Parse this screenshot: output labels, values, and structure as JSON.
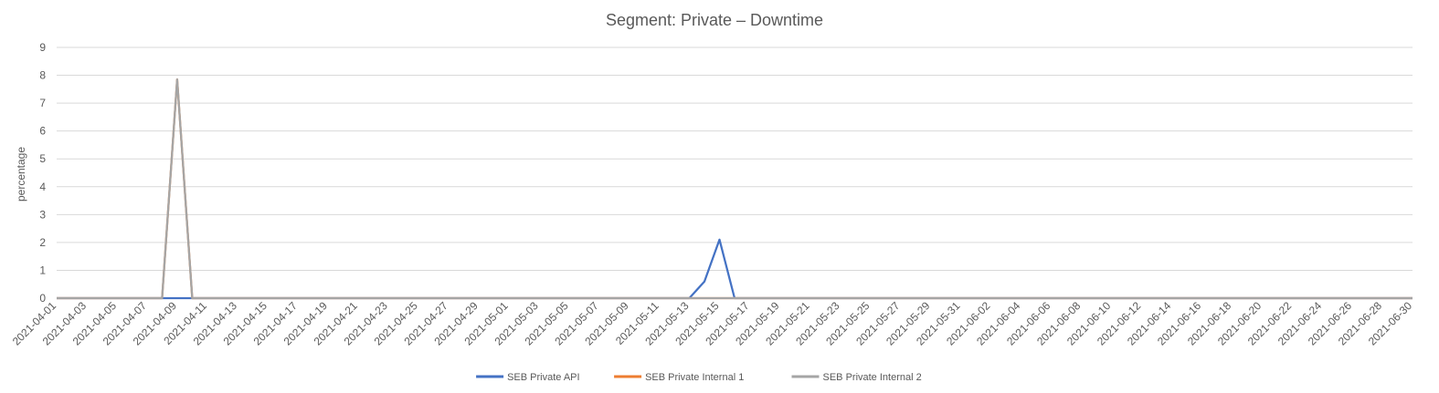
{
  "chart_data": {
    "type": "line",
    "title": "Segment: Private – Downtime",
    "ylabel": "percentage",
    "xlabel": "",
    "ylim": [
      0,
      9
    ],
    "yticks": [
      0,
      1,
      2,
      3,
      4,
      5,
      6,
      7,
      8,
      9
    ],
    "grid": true,
    "legend_position": "bottom",
    "x_start": "2021-04-01",
    "x_end": "2021-06-30",
    "x_tick_labels": [
      "2021-04-01",
      "2021-04-03",
      "2021-04-05",
      "2021-04-07",
      "2021-04-09",
      "2021-04-11",
      "2021-04-13",
      "2021-04-15",
      "2021-04-17",
      "2021-04-19",
      "2021-04-21",
      "2021-04-23",
      "2021-04-25",
      "2021-04-27",
      "2021-04-29",
      "2021-05-01",
      "2021-05-03",
      "2021-05-05",
      "2021-05-07",
      "2021-05-09",
      "2021-05-11",
      "2021-05-13",
      "2021-05-15",
      "2021-05-17",
      "2021-05-19",
      "2021-05-21",
      "2021-05-23",
      "2021-05-25",
      "2021-05-27",
      "2021-05-29",
      "2021-05-31",
      "2021-06-02",
      "2021-06-04",
      "2021-06-06",
      "2021-06-08",
      "2021-06-10",
      "2021-06-12",
      "2021-06-14",
      "2021-06-16",
      "2021-06-18",
      "2021-06-20",
      "2021-06-22",
      "2021-06-24",
      "2021-06-26",
      "2021-06-28",
      "2021-06-30"
    ],
    "series": [
      {
        "name": "SEB Private API",
        "color": "#4472c4",
        "points": [
          {
            "x": "2021-04-01",
            "y": 0
          },
          {
            "x": "2021-05-13",
            "y": 0
          },
          {
            "x": "2021-05-14",
            "y": 0.6
          },
          {
            "x": "2021-05-15",
            "y": 2.1
          },
          {
            "x": "2021-05-16",
            "y": 0
          },
          {
            "x": "2021-06-30",
            "y": 0
          }
        ]
      },
      {
        "name": "SEB Private Internal 1",
        "color": "#ed7d31",
        "points": [
          {
            "x": "2021-04-01",
            "y": 0
          },
          {
            "x": "2021-04-08",
            "y": 0
          },
          {
            "x": "2021-04-09",
            "y": 7.85
          },
          {
            "x": "2021-04-10",
            "y": 0
          },
          {
            "x": "2021-06-30",
            "y": 0
          }
        ]
      },
      {
        "name": "SEB Private Internal 2",
        "color": "#a5a5a5",
        "points": [
          {
            "x": "2021-04-01",
            "y": 0
          },
          {
            "x": "2021-04-08",
            "y": 0
          },
          {
            "x": "2021-04-09",
            "y": 7.85
          },
          {
            "x": "2021-04-10",
            "y": 0
          },
          {
            "x": "2021-06-30",
            "y": 0
          }
        ]
      }
    ]
  }
}
